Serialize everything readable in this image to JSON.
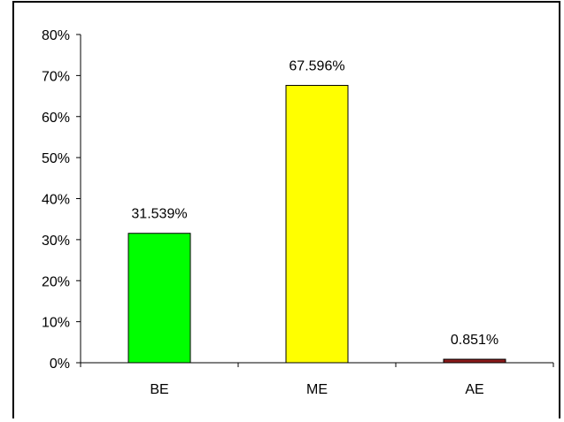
{
  "chart_data": {
    "type": "bar",
    "categories": [
      "BE",
      "ME",
      "AE"
    ],
    "values": [
      31.539,
      67.596,
      0.851
    ],
    "data_labels": [
      "31.539%",
      "67.596%",
      "0.851%"
    ],
    "bar_colors": [
      "#00ff00",
      "#ffff00",
      "#8b1a1a"
    ],
    "ylim": [
      0,
      80
    ],
    "y_ticks": [
      0,
      10,
      20,
      30,
      40,
      50,
      60,
      70,
      80
    ],
    "y_tick_labels": [
      "0%",
      "10%",
      "20%",
      "30%",
      "40%",
      "50%",
      "60%",
      "70%",
      "80%"
    ],
    "grid": false,
    "legend": "none"
  }
}
